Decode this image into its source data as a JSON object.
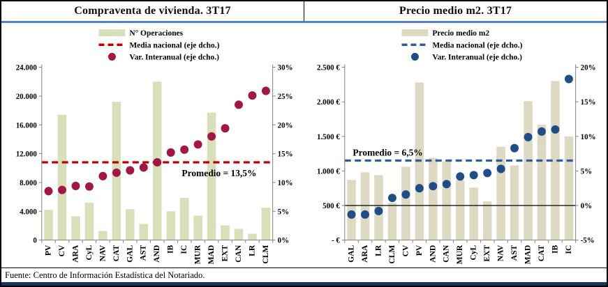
{
  "footer": {
    "source": "Fuente: Centro de Información Estadística del Notariado."
  },
  "colors": {
    "header_rule": "#4f81bd",
    "bottom_rule": "#17375d",
    "axis_line": "#808080",
    "zero_line": "#000000"
  },
  "chart_data": [
    {
      "type": "bar",
      "title": "Compraventa de vivienda. 3T17",
      "legend": [
        {
          "label": "N° Operaciones",
          "swatch": "bar"
        },
        {
          "label": "Media nacional (eje dcho.)",
          "swatch": "dash"
        },
        {
          "label": "Var. Interanual (eje dcho.)",
          "swatch": "dot"
        }
      ],
      "legend_position": "top-center",
      "grid": false,
      "categories": [
        "PV",
        "CV",
        "ARA",
        "CyL",
        "NAV",
        "CAT",
        "GAL",
        "AST",
        "AND",
        "IB",
        "IC",
        "MUR",
        "MAD",
        "EXT",
        "CAN",
        "LR",
        "CLM"
      ],
      "series": [
        {
          "name": "N° Operaciones",
          "axis": "left",
          "values": [
            4200,
            17400,
            3300,
            5200,
            1270,
            19200,
            4300,
            2240,
            22000,
            4000,
            5850,
            3400,
            17700,
            2050,
            1560,
            880,
            4500
          ]
        },
        {
          "name": "Var. Interanual (eje dcho.)",
          "axis": "right",
          "values_pct": [
            8.5,
            8.7,
            9.4,
            9.3,
            11.1,
            11.7,
            12.1,
            12.6,
            13.5,
            15.2,
            15.7,
            16.6,
            18.0,
            19.4,
            23.5,
            25.1,
            25.9
          ]
        }
      ],
      "mean_line_pct": 13.5,
      "annotation": "Promedio = 13,5%",
      "annotation_pos": "right-below",
      "left_axis": {
        "min": 0,
        "max": 24000,
        "ticks": [
          "24.000",
          "20.000",
          "16.000",
          "12.000",
          "8.000",
          "4.000",
          "0"
        ]
      },
      "right_axis": {
        "min": 0,
        "max": 30,
        "ticks": [
          "30%",
          "25%",
          "20%",
          "15%",
          "10%",
          "5%",
          "0%"
        ]
      },
      "zero_line_pct": null,
      "colors": {
        "bar": "#d8e0ba",
        "dot": "#a31745",
        "dash": "#c00000",
        "annotation": "#8a1538"
      }
    },
    {
      "type": "bar",
      "title": "Precio medio m2. 3T17",
      "legend": [
        {
          "label": "Precio medio m2",
          "swatch": "bar"
        },
        {
          "label": "Media nacional (eje dcho.)",
          "swatch": "dash"
        },
        {
          "label": "Var. Interanual (eje dcho.)",
          "swatch": "dot"
        }
      ],
      "legend_position": "top-center",
      "grid": false,
      "categories": [
        "GAL",
        "ARA",
        "LR",
        "CLM",
        "CV",
        "PV",
        "AND",
        "CAN",
        "MUR",
        "CyL",
        "EXT",
        "NAV",
        "AST",
        "MAD",
        "CAT",
        "IB",
        "IC"
      ],
      "series": [
        {
          "name": "Precio medio m2",
          "axis": "left",
          "values": [
            870,
            980,
            940,
            540,
            1060,
            2280,
            1190,
            1140,
            870,
            760,
            560,
            1350,
            1080,
            2010,
            1670,
            2300,
            1500
          ]
        },
        {
          "name": "Var. Interanual (eje dcho.)",
          "axis": "right",
          "values_pct": [
            -1.3,
            -1.3,
            -0.8,
            1.1,
            1.6,
            2.5,
            2.8,
            3.1,
            4.2,
            4.4,
            4.7,
            5.3,
            8.3,
            9.9,
            10.7,
            11.0,
            18.3
          ]
        }
      ],
      "mean_line_pct": 6.5,
      "annotation": "Promedio = 6,5%",
      "annotation_pos": "left-above",
      "left_axis": {
        "min": 0,
        "max": 2500,
        "ticks": [
          "2.500 €",
          "2.000 €",
          "1.500 €",
          "1.000 €",
          "500 €",
          "-   €"
        ]
      },
      "right_axis": {
        "min": -5,
        "max": 20,
        "ticks": [
          "20%",
          "15%",
          "10%",
          "5%",
          "0%",
          "-5%"
        ]
      },
      "zero_line_pct": 0,
      "colors": {
        "bar": "#ded9c2",
        "dot": "#1f4e87",
        "dash": "#2f5d9c",
        "annotation": "#1f3864"
      }
    }
  ]
}
